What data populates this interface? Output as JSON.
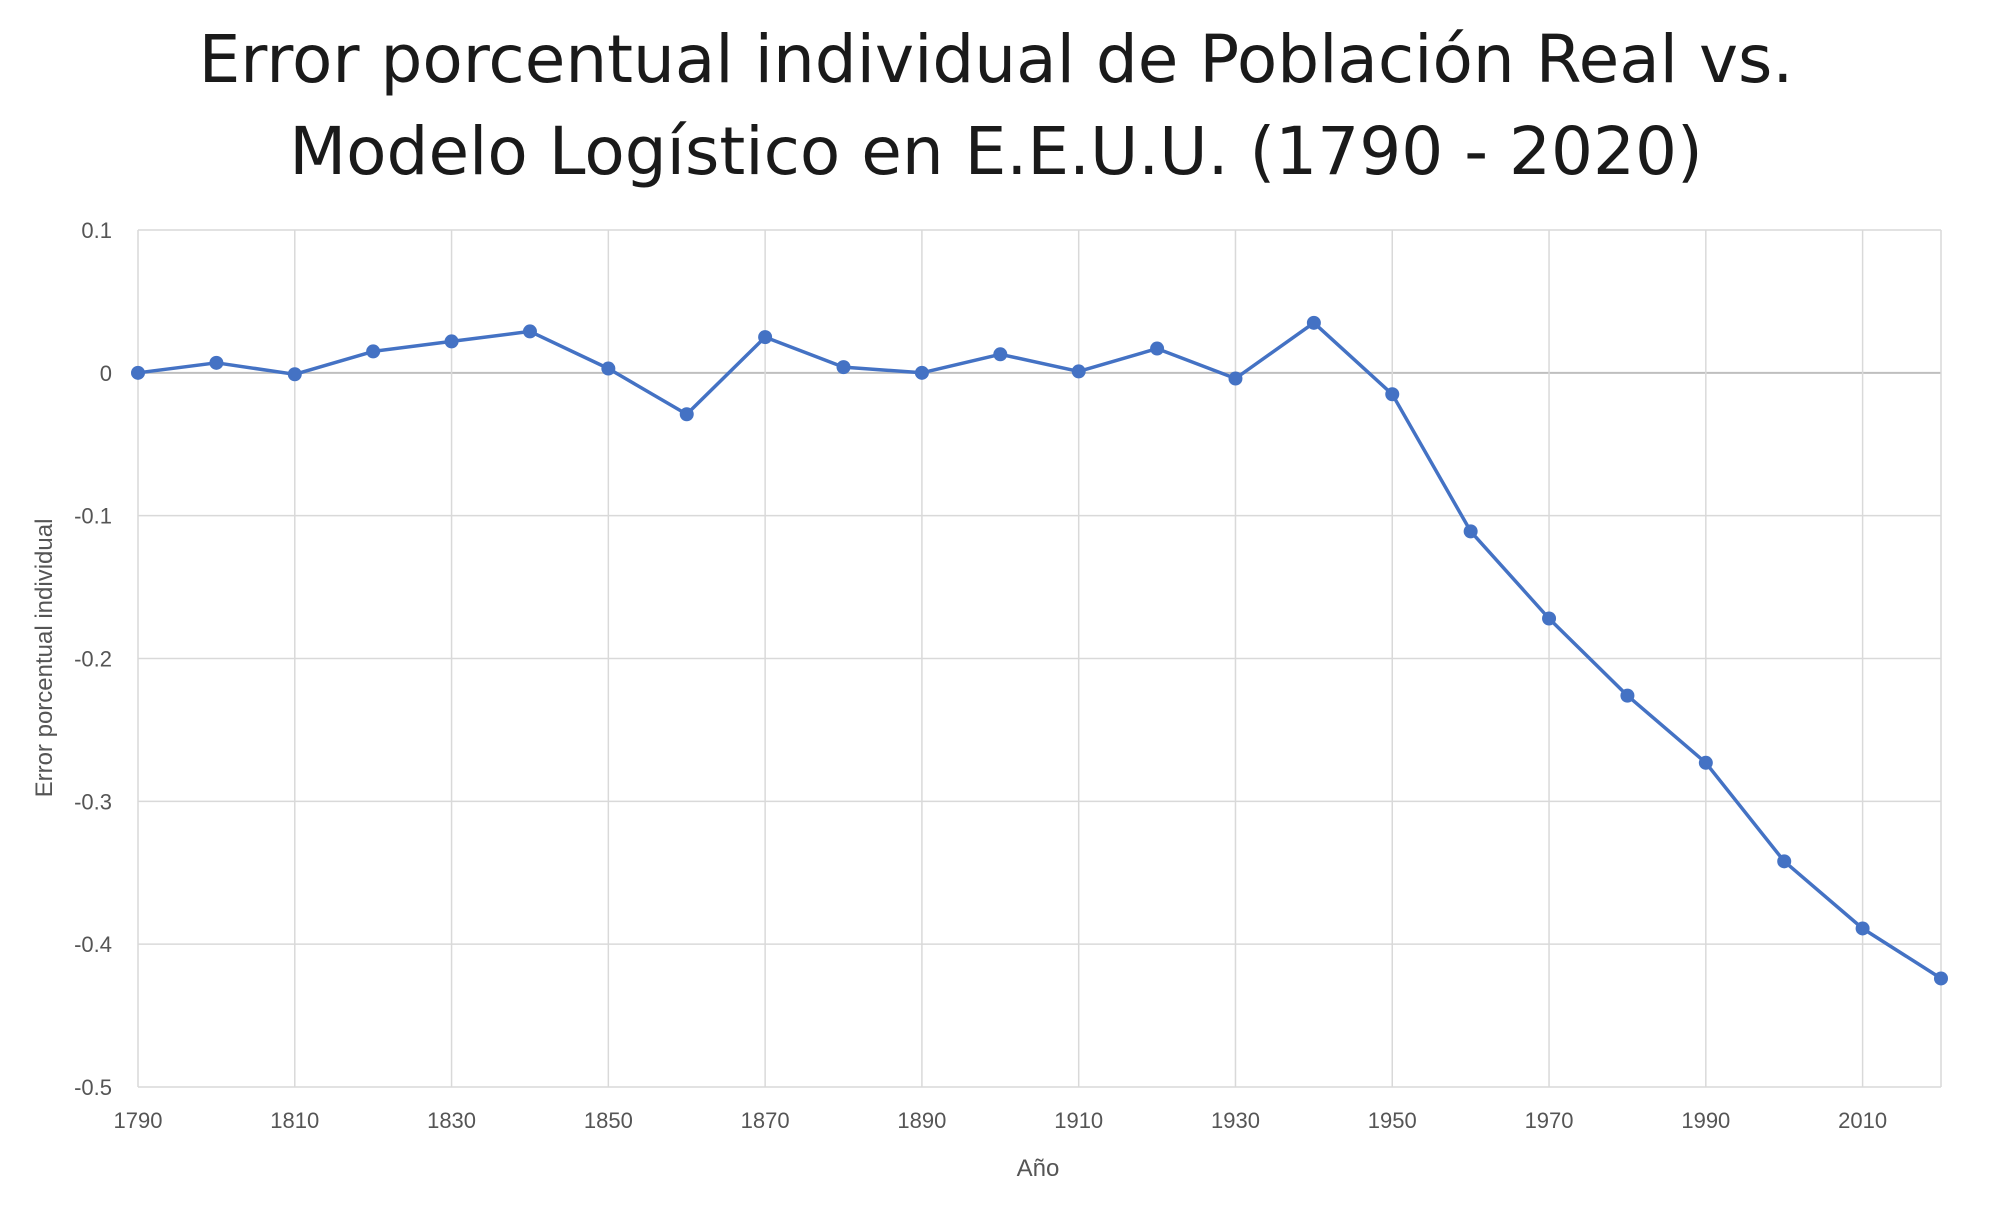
{
  "chart_data": {
    "type": "line",
    "title_lines": [
      "Error porcentual individual de Población Real vs.",
      "Modelo Logístico en E.E.U.U. (1790 - 2020)"
    ],
    "xlabel": "Año",
    "ylabel": "Error porcentual individual",
    "xlim": [
      1790,
      2020
    ],
    "ylim": [
      -0.5,
      0.1
    ],
    "x_ticks": [
      1790,
      1810,
      1830,
      1850,
      1870,
      1890,
      1910,
      1930,
      1950,
      1970,
      1990,
      2010
    ],
    "x_tick_labels": [
      "1790",
      "1810",
      "1830",
      "1850",
      "1870",
      "1890",
      "1910",
      "1930",
      "1950",
      "1970",
      "1990",
      "2010"
    ],
    "y_ticks": [
      0.1,
      0,
      -0.1,
      -0.2,
      -0.3,
      -0.4,
      -0.5
    ],
    "y_tick_labels": [
      "0.1",
      "0",
      "-0.1",
      "-0.2",
      "-0.3",
      "-0.4",
      "-0.5"
    ],
    "grid": true,
    "legend": "none",
    "series": [
      {
        "color": "#4472C4",
        "x": [
          1790,
          1800,
          1810,
          1820,
          1830,
          1840,
          1850,
          1860,
          1870,
          1880,
          1890,
          1900,
          1910,
          1920,
          1930,
          1940,
          1950,
          1960,
          1970,
          1980,
          1990,
          2000,
          2010,
          2020
        ],
        "y": [
          0.0,
          0.007,
          -0.001,
          0.015,
          0.022,
          0.029,
          0.003,
          -0.029,
          0.025,
          0.004,
          0.0,
          0.013,
          0.001,
          0.017,
          -0.004,
          0.035,
          -0.015,
          -0.111,
          -0.172,
          -0.226,
          -0.273,
          -0.342,
          -0.389,
          -0.424
        ]
      }
    ]
  }
}
